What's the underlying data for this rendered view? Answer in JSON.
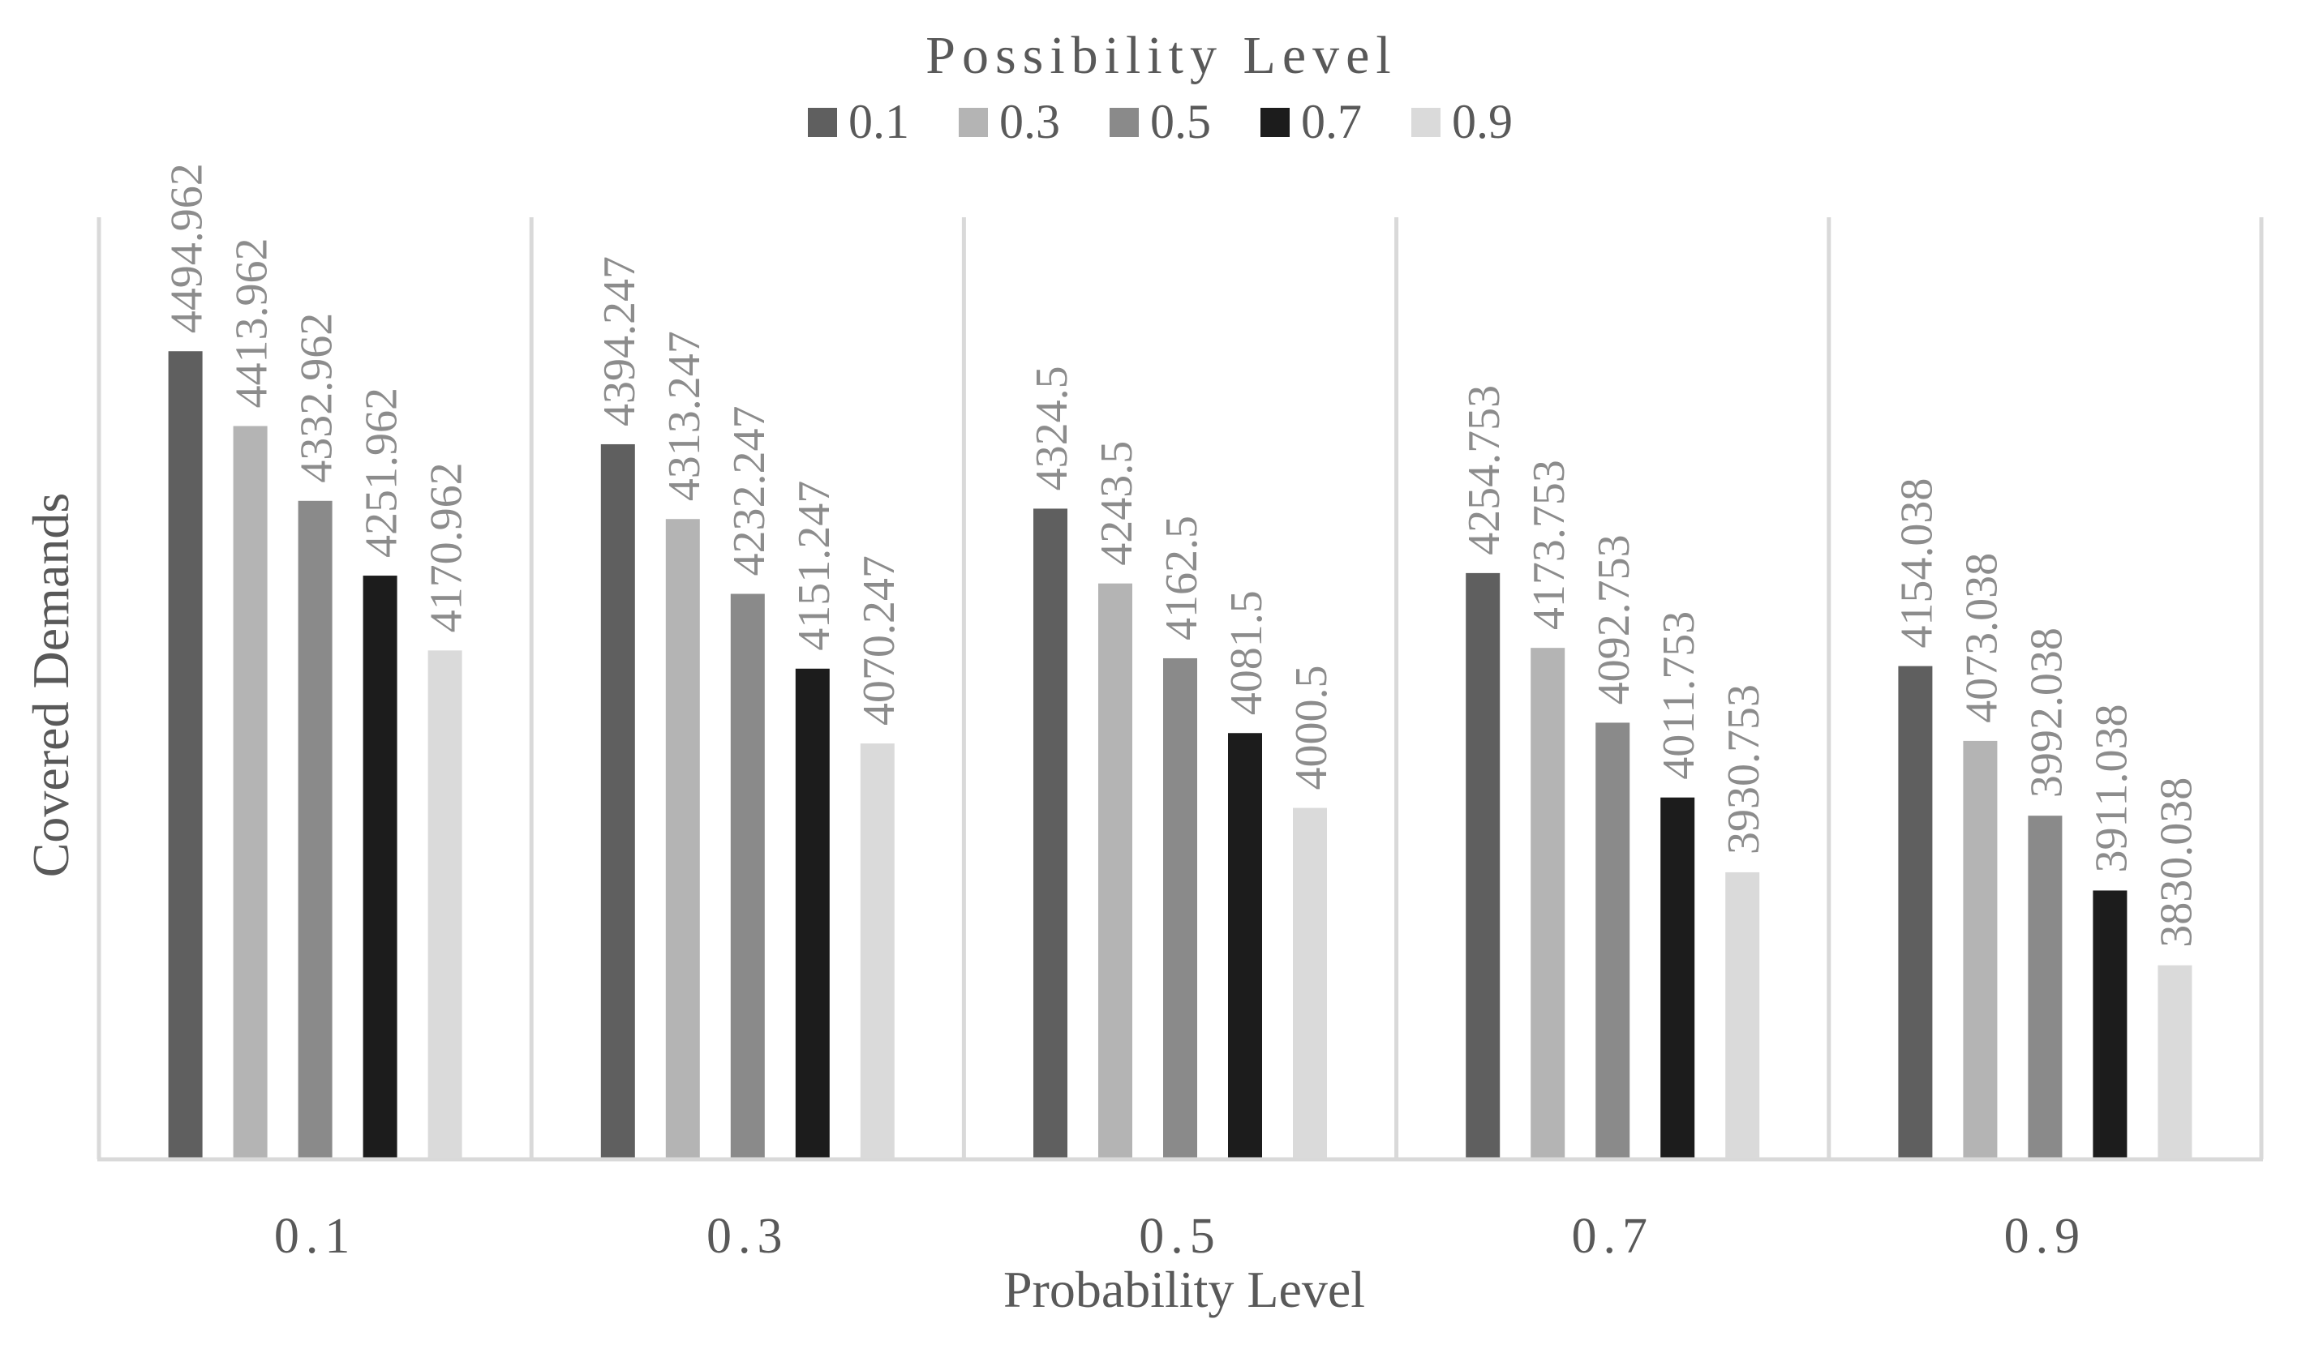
{
  "chart_data": {
    "type": "bar",
    "title": "Possibility Level",
    "xlabel": "Probability Level",
    "ylabel": "Covered Demands",
    "categories": [
      "0.1",
      "0.3",
      "0.5",
      "0.7",
      "0.9"
    ],
    "series": [
      {
        "name": "0.1",
        "color": "#5f5f5f",
        "values": [
          4494.962,
          4394.247,
          4324.5,
          4254.753,
          4154.038
        ],
        "labels": [
          "4494.962",
          "4394.247",
          "4324.5",
          "4254.753",
          "4154.038"
        ]
      },
      {
        "name": "0.3",
        "color": "#b4b4b4",
        "values": [
          4413.962,
          4313.247,
          4243.5,
          4173.753,
          4073.038
        ],
        "labels": [
          "4413.962",
          "4313.247",
          "4243.5",
          "4173.753",
          "4073.038"
        ]
      },
      {
        "name": "0.5",
        "color": "#8a8a8a",
        "values": [
          4332.962,
          4232.247,
          4162.5,
          4092.753,
          3992.038
        ],
        "labels": [
          "4332.962",
          "4232.247",
          "4162.5",
          "4092.753",
          "3992.038"
        ]
      },
      {
        "name": "0.7",
        "color": "#1c1c1c",
        "values": [
          4251.962,
          4151.247,
          4081.5,
          4011.753,
          3911.038
        ],
        "labels": [
          "4251.962",
          "4151.247",
          "4081.5",
          "4011.753",
          "3911.038"
        ]
      },
      {
        "name": "0.9",
        "color": "#dadada",
        "values": [
          4170.962,
          4070.247,
          4000.5,
          3930.753,
          3830.038
        ],
        "labels": [
          "4170.962",
          "4070.247",
          "4000.5",
          "3930.753",
          "3830.038"
        ]
      }
    ],
    "ylim": [
      3620,
      4640
    ],
    "legend_position": "top",
    "grid": "vertical category separators",
    "colors": {
      "text": "#595959",
      "label": "#8c8c8c",
      "axis": "#d9d9d9"
    }
  }
}
